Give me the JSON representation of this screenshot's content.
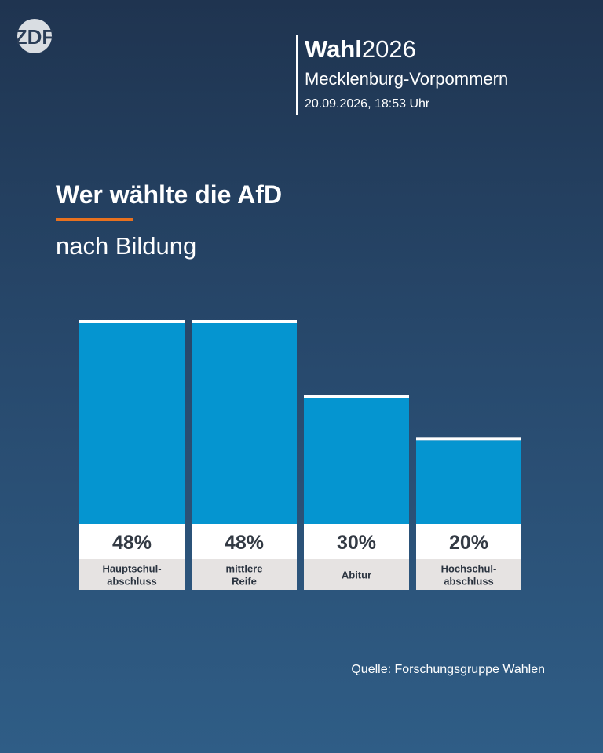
{
  "logo": {
    "text": "ZDF",
    "icon": "zdf-logo-icon"
  },
  "header": {
    "brand_bold": "Wahl",
    "brand_year": "2026",
    "region": "Mecklenburg-Vorpommern",
    "datetime": "20.09.2026, 18:53 Uhr"
  },
  "title": "Wer wählte die AfD",
  "subtitle": "nach Bildung",
  "source": "Quelle: Forschungsgruppe Wahlen",
  "colors": {
    "bar": "#0595d0",
    "bar_cap": "#ffffff",
    "value_box": "#ffffff",
    "label_box": "#e6e3e2",
    "accent": "#e8711f"
  },
  "chart_data": {
    "type": "bar",
    "categories": [
      [
        "Hauptschul-",
        "abschluss"
      ],
      [
        "mittlere",
        "Reife"
      ],
      [
        "Abitur"
      ],
      [
        "Hochschul-",
        "abschluss"
      ]
    ],
    "values": [
      48,
      48,
      30,
      20
    ],
    "value_labels": [
      "48%",
      "48%",
      "30%",
      "20%"
    ],
    "ylim": [
      0,
      48
    ],
    "grid": false,
    "legend": "none"
  }
}
